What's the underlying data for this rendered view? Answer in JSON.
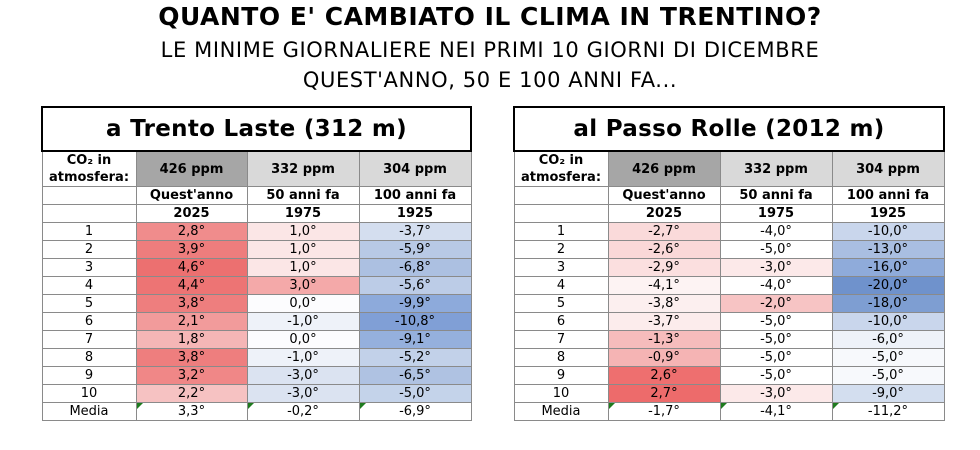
{
  "title": "QUANTO E' CAMBIATO IL CLIMA IN TRENTINO?",
  "subtitle1": "LE MINIME GIORNALIERE NEI PRIMI 10 GIORNI DI DICEMBRE",
  "subtitle2": "QUEST'ANNO, 50 E 100 ANNI FA...",
  "co2_label_1": "CO₂ in",
  "co2_label_2": "atmosfera:",
  "ppm": [
    "426 ppm",
    "332 ppm",
    "304 ppm"
  ],
  "year_labels": [
    "Quest'anno",
    "50 anni fa",
    "100 anni fa"
  ],
  "years": [
    "2025",
    "1975",
    "1925"
  ],
  "media_label": "Media",
  "tables": [
    {
      "title": "a Trento Laste (312 m)",
      "rows": [
        {
          "day": "1",
          "v": [
            "2,8°",
            "1,0°",
            "-3,7°"
          ],
          "c": [
            "#f08c8c",
            "#fbe6e6",
            "#d4deef"
          ]
        },
        {
          "day": "2",
          "v": [
            "3,9°",
            "1,0°",
            "-5,9°"
          ],
          "c": [
            "#ee7d7d",
            "#fbe6e6",
            "#b8c9e5"
          ]
        },
        {
          "day": "3",
          "v": [
            "4,6°",
            "1,0°",
            "-6,8°"
          ],
          "c": [
            "#ec7070",
            "#fbe6e6",
            "#acc0e1"
          ]
        },
        {
          "day": "4",
          "v": [
            "4,4°",
            "3,0°",
            "-5,6°"
          ],
          "c": [
            "#ed7474",
            "#f4a9a9",
            "#bccce7"
          ]
        },
        {
          "day": "5",
          "v": [
            "3,8°",
            "0,0°",
            "-9,9°"
          ],
          "c": [
            "#ee7e7e",
            "#fcfcfe",
            "#8daadb"
          ]
        },
        {
          "day": "6",
          "v": [
            "2,1°",
            "-1,0°",
            "-10,8°"
          ],
          "c": [
            "#f29b9b",
            "#eef2f9",
            "#809fd6"
          ]
        },
        {
          "day": "7",
          "v": [
            "1,8°",
            "0,0°",
            "-9,1°"
          ],
          "c": [
            "#f5b6b6",
            "#fcfcfe",
            "#95b0dd"
          ]
        },
        {
          "day": "8",
          "v": [
            "3,8°",
            "-1,0°",
            "-5,2°"
          ],
          "c": [
            "#ee7e7e",
            "#eef2f9",
            "#c2d1e9"
          ]
        },
        {
          "day": "9",
          "v": [
            "3,2°",
            "-3,0°",
            "-6,5°"
          ],
          "c": [
            "#f08787",
            "#dbe3f1",
            "#afc2e2"
          ]
        },
        {
          "day": "10",
          "v": [
            "2,2°",
            "-3,0°",
            "-5,0°"
          ],
          "c": [
            "#f6c2c2",
            "#dbe3f1",
            "#c4d3ea"
          ]
        }
      ],
      "media": [
        "3,3°",
        "-0,2°",
        "-6,9°"
      ]
    },
    {
      "title": "al Passo Rolle (2012 m)",
      "rows": [
        {
          "day": "1",
          "v": [
            "-2,7°",
            "-4,0°",
            "-10,0°"
          ],
          "c": [
            "#fadada",
            "#ffffff",
            "#c9d6ec"
          ]
        },
        {
          "day": "2",
          "v": [
            "-2,6°",
            "-5,0°",
            "-13,0°"
          ],
          "c": [
            "#fad8d8",
            "#ffffff",
            "#a9bee1"
          ]
        },
        {
          "day": "3",
          "v": [
            "-2,9°",
            "-3,0°",
            "-16,0°"
          ],
          "c": [
            "#fbdfdf",
            "#fce9e9",
            "#8fabda"
          ]
        },
        {
          "day": "4",
          "v": [
            "-4,1°",
            "-4,0°",
            "-20,0°"
          ],
          "c": [
            "#fdf3f3",
            "#ffffff",
            "#6f92cc"
          ]
        },
        {
          "day": "5",
          "v": [
            "-3,8°",
            "-2,0°",
            "-18,0°"
          ],
          "c": [
            "#fcefef",
            "#f7c4c4",
            "#7e9ed2"
          ]
        },
        {
          "day": "6",
          "v": [
            "-3,7°",
            "-5,0°",
            "-10,0°"
          ],
          "c": [
            "#fcecec",
            "#ffffff",
            "#c9d6ec"
          ]
        },
        {
          "day": "7",
          "v": [
            "-1,3°",
            "-5,0°",
            "-6,0°"
          ],
          "c": [
            "#f6bcbc",
            "#ffffff",
            "#eef2f9"
          ]
        },
        {
          "day": "8",
          "v": [
            "-0,9°",
            "-5,0°",
            "-5,0°"
          ],
          "c": [
            "#f5b4b4",
            "#ffffff",
            "#f7f9fc"
          ]
        },
        {
          "day": "9",
          "v": [
            "2,6°",
            "-5,0°",
            "-5,0°"
          ],
          "c": [
            "#ee6f6f",
            "#ffffff",
            "#f7f9fc"
          ]
        },
        {
          "day": "10",
          "v": [
            "2,7°",
            "-3,0°",
            "-9,0°"
          ],
          "c": [
            "#ed6b6b",
            "#fce9e9",
            "#d3deef"
          ]
        }
      ],
      "media": [
        "-1,7°",
        "-4,1°",
        "-11,2°"
      ]
    }
  ]
}
